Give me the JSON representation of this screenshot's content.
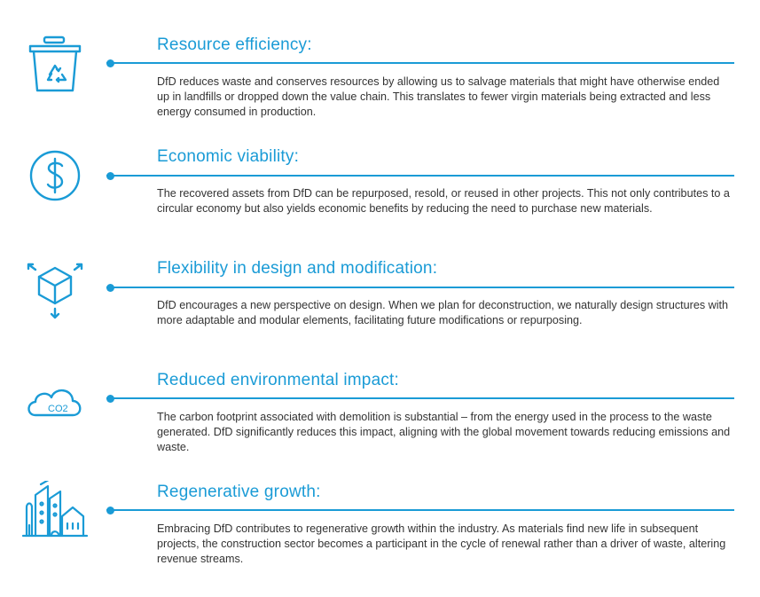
{
  "accent_color": "#1a9bd6",
  "text_color": "#333333",
  "sections": [
    {
      "icon": "recycle-bin-icon",
      "title": "Resource efficiency:",
      "text": "DfD reduces waste and conserves resources by allowing us to salvage materials that might have otherwise ended up in landfills or dropped down the value chain. This translates to fewer virgin materials being extracted and less energy consumed in production."
    },
    {
      "icon": "dollar-icon",
      "title": "Economic viability:",
      "text": "The recovered assets from DfD can be repurposed, resold, or reused in other projects. This not only contributes to a circular economy but also yields economic benefits by reducing the need to purchase new materials."
    },
    {
      "icon": "cube-arrows-icon",
      "title": "Flexibility in design and modification:",
      "text": "DfD encourages a new perspective on design. When we plan for deconstruction, we naturally design structures with more adaptable and modular elements, facilitating future modifications or repurposing."
    },
    {
      "icon": "co2-cloud-icon",
      "title": "Reduced environmental impact:",
      "text": "The carbon footprint associated with demolition is substantial – from the energy used in the process to the waste generated. DfD significantly reduces this impact, aligning with the global movement towards reducing emissions and waste.",
      "icon_label": "CO2"
    },
    {
      "icon": "city-buildings-icon",
      "title": "Regenerative growth:",
      "text": "Embracing DfD contributes to regenerative growth within the industry. As materials find new life in subsequent projects, the construction sector becomes a participant in the cycle of renewal rather than a driver of waste, altering revenue streams."
    }
  ]
}
